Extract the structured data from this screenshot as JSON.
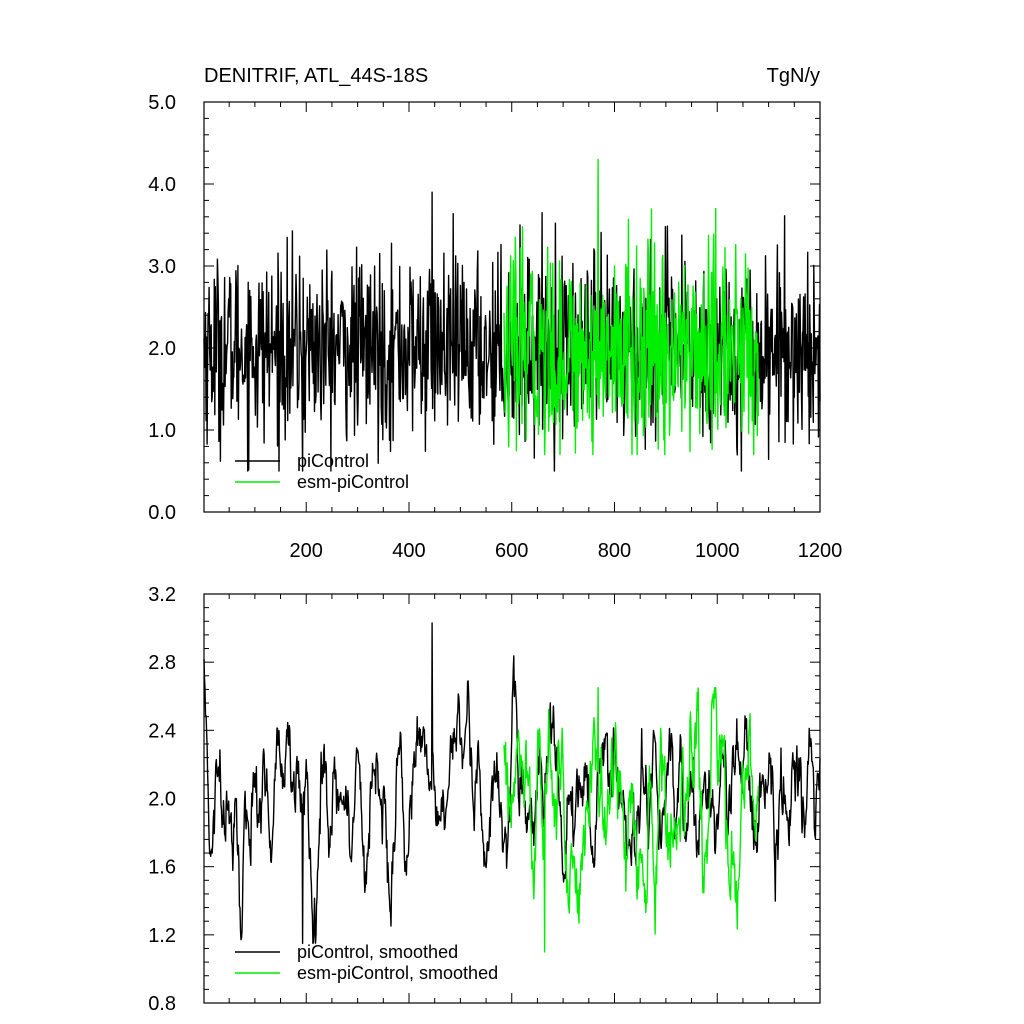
{
  "chart_data": [
    {
      "type": "line",
      "title": "DENITRIF, ATL_44S-18S",
      "units": "TgN/y",
      "xlim": [
        1,
        1200
      ],
      "ylim": [
        0.0,
        5.0
      ],
      "x_tick_labels": [
        "200",
        "400",
        "600",
        "800",
        "1000",
        "1200"
      ],
      "y_tick_labels": [
        "0.0",
        "1.0",
        "2.0",
        "3.0",
        "4.0",
        "5.0"
      ],
      "legend_position": "bottom-left",
      "series": [
        {
          "name": "piControl",
          "color": "#000000",
          "x_range": [
            1,
            1200
          ],
          "mean": 2.0,
          "amplitude": 0.55,
          "min": 0.5,
          "max": 3.9
        },
        {
          "name": "esm-piControl",
          "color": "#00ee00",
          "x_range": [
            585,
            1080
          ],
          "mean": 1.95,
          "amplitude": 0.6,
          "min": 0.7,
          "max": 4.3
        }
      ]
    },
    {
      "type": "line",
      "xlim": [
        1,
        1200
      ],
      "ylim": [
        0.8,
        3.2
      ],
      "y_tick_labels": [
        "0.8",
        "1.2",
        "1.6",
        "2.0",
        "2.4",
        "2.8",
        "3.2"
      ],
      "legend_position": "bottom-left",
      "series": [
        {
          "name": "piControl, smoothed",
          "color": "#000000",
          "x_range": [
            1,
            1200
          ],
          "mean": 2.0,
          "amplitude": 0.25,
          "min": 1.15,
          "max": 3.03
        },
        {
          "name": "esm-piControl, smoothed",
          "color": "#00ee00",
          "x_range": [
            585,
            1080
          ],
          "mean": 1.95,
          "amplitude": 0.3,
          "min": 1.1,
          "max": 2.65
        }
      ]
    }
  ]
}
